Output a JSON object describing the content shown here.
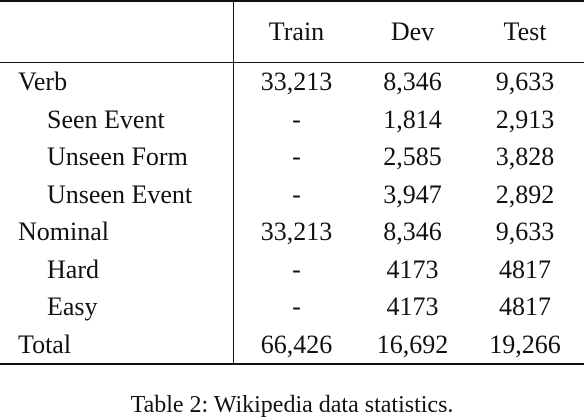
{
  "table": {
    "columns": [
      "",
      "Train",
      "Dev",
      "Test"
    ],
    "rows": [
      {
        "label": "Verb",
        "train": "33,213",
        "dev": "8,346",
        "test": "9,633",
        "indent": false
      },
      {
        "label": "Seen Event",
        "train": "-",
        "dev": "1,814",
        "test": "2,913",
        "indent": true
      },
      {
        "label": "Unseen Form",
        "train": "-",
        "dev": "2,585",
        "test": "3,828",
        "indent": true
      },
      {
        "label": "Unseen Event",
        "train": "-",
        "dev": "3,947",
        "test": "2,892",
        "indent": true
      },
      {
        "label": "Nominal",
        "train": "33,213",
        "dev": "8,346",
        "test": "9,633",
        "indent": false
      },
      {
        "label": "Hard",
        "train": "-",
        "dev": "4173",
        "test": "4817",
        "indent": true
      },
      {
        "label": "Easy",
        "train": "-",
        "dev": "4173",
        "test": "4817",
        "indent": true
      },
      {
        "label": "Total",
        "train": "66,426",
        "dev": "16,692",
        "test": "19,266",
        "indent": false
      }
    ]
  },
  "caption": "Table 2: Wikipedia data statistics."
}
